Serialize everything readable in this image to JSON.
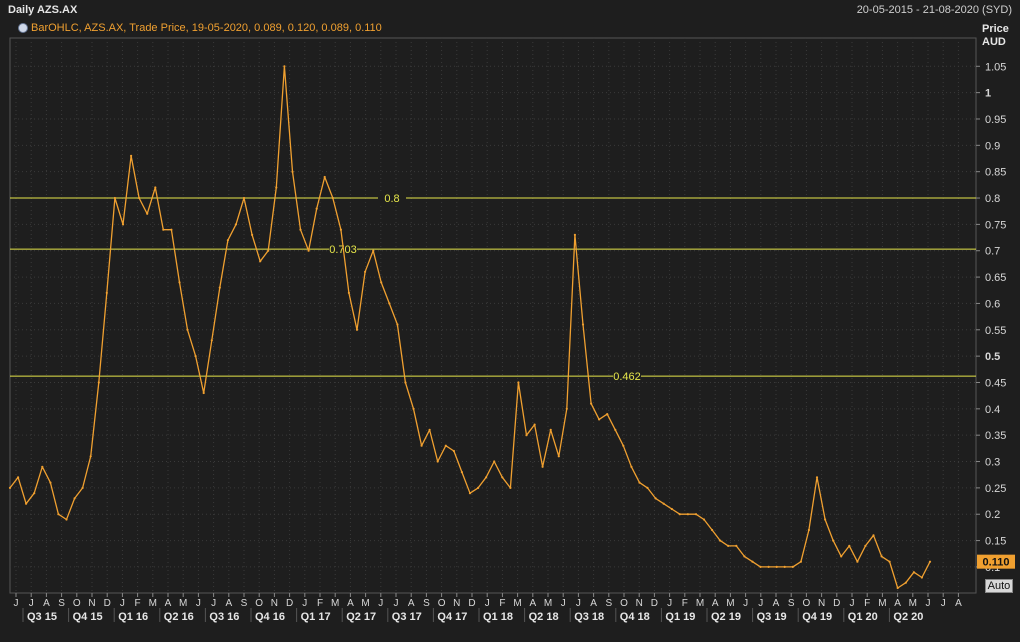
{
  "header": {
    "title": "Daily AZS.AX",
    "date_range": "20-05-2015 - 21-08-2020 (SYD)"
  },
  "legend": {
    "icon": "clock-icon",
    "text": "BarOHLC, AZS.AX, Trade Price, 19-05-2020, 0.089, 0.120, 0.089, 0.110"
  },
  "axis": {
    "title_line1": "Price",
    "title_line2": "AUD",
    "auto_label": "Auto"
  },
  "colors": {
    "background": "#1e1e1e",
    "series": "#f0a030",
    "hline": "#e6e64a",
    "grid": "#3a3a3a",
    "last_price_badge": "#f0a030"
  },
  "chart_data": {
    "type": "line",
    "title": "Daily AZS.AX",
    "ylabel": "Price AUD",
    "ylim": [
      0.05,
      1.07
    ],
    "y_ticks": [
      "0.1",
      "0.15",
      "0.2",
      "0.25",
      "0.3",
      "0.35",
      "0.4",
      "0.45",
      "0.5",
      "0.55",
      "0.6",
      "0.65",
      "0.7",
      "0.75",
      "0.8",
      "0.85",
      "0.9",
      "0.95",
      "1",
      "1.05"
    ],
    "bold_ticks": [
      "0.5",
      "1"
    ],
    "month_labels": [
      "J",
      "J",
      "A",
      "S",
      "O",
      "N",
      "D",
      "J",
      "F",
      "M",
      "A",
      "M",
      "J",
      "J",
      "A",
      "S",
      "O",
      "N",
      "D",
      "J",
      "F",
      "M",
      "A",
      "M",
      "J",
      "J",
      "A",
      "S",
      "O",
      "N",
      "D",
      "J",
      "F",
      "M",
      "A",
      "M",
      "J",
      "J",
      "A",
      "S",
      "O",
      "N",
      "D",
      "J",
      "F",
      "M",
      "A",
      "M",
      "J",
      "J",
      "A",
      "S",
      "O",
      "N",
      "D",
      "J",
      "F",
      "M",
      "A",
      "M",
      "J",
      "J",
      "A"
    ],
    "quarter_labels": [
      "Q3 15",
      "Q4 15",
      "Q1 16",
      "Q2 16",
      "Q3 16",
      "Q4 16",
      "Q1 17",
      "Q2 17",
      "Q3 17",
      "Q4 17",
      "Q1 18",
      "Q2 18",
      "Q3 18",
      "Q4 18",
      "Q1 19",
      "Q2 19",
      "Q3 19",
      "Q4 19",
      "Q1 20",
      "Q2 20"
    ],
    "horizontal_lines": [
      {
        "value": 0.8,
        "label": "0.8"
      },
      {
        "value": 0.703,
        "label": "0.703"
      },
      {
        "value": 0.462,
        "label": "0.462"
      }
    ],
    "last_price": {
      "value": 0.11,
      "label": "0.110"
    },
    "series": [
      {
        "values": [
          0.25,
          0.27,
          0.22,
          0.24,
          0.29,
          0.26,
          0.2,
          0.19,
          0.23,
          0.25,
          0.31,
          0.45,
          0.62,
          0.8,
          0.75,
          0.88,
          0.8,
          0.77,
          0.82,
          0.74,
          0.74,
          0.64,
          0.55,
          0.5,
          0.43,
          0.53,
          0.63,
          0.72,
          0.75,
          0.8,
          0.73,
          0.68,
          0.7,
          0.82,
          1.05,
          0.85,
          0.74,
          0.7,
          0.78,
          0.84,
          0.8,
          0.74,
          0.62,
          0.55,
          0.66,
          0.7,
          0.64,
          0.6,
          0.56,
          0.45,
          0.4,
          0.33,
          0.36,
          0.3,
          0.33,
          0.32,
          0.28,
          0.24,
          0.25,
          0.27,
          0.3,
          0.27,
          0.25,
          0.45,
          0.35,
          0.37,
          0.29,
          0.36,
          0.31,
          0.4,
          0.73,
          0.56,
          0.41,
          0.38,
          0.39,
          0.36,
          0.33,
          0.29,
          0.26,
          0.25,
          0.23,
          0.22,
          0.21,
          0.2,
          0.2,
          0.2,
          0.19,
          0.17,
          0.15,
          0.14,
          0.14,
          0.12,
          0.11,
          0.1,
          0.1,
          0.1,
          0.1,
          0.1,
          0.11,
          0.17,
          0.27,
          0.19,
          0.15,
          0.12,
          0.14,
          0.11,
          0.14,
          0.16,
          0.12,
          0.11,
          0.06,
          0.07,
          0.09,
          0.08,
          0.11
        ]
      }
    ]
  }
}
